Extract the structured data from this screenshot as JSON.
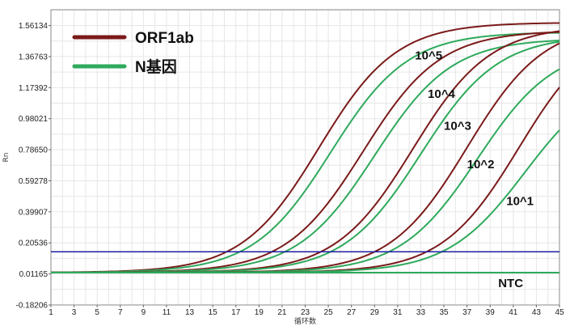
{
  "chart_data": {
    "type": "line",
    "title": "",
    "xlabel": "循环数",
    "ylabel": "Rn",
    "xlim": [
      1,
      45
    ],
    "ylim": [
      -0.18206,
      1.66
    ],
    "x_ticks": [
      1,
      3,
      5,
      7,
      9,
      11,
      13,
      15,
      17,
      19,
      21,
      23,
      25,
      27,
      29,
      31,
      33,
      35,
      37,
      39,
      41,
      43,
      45
    ],
    "y_ticks": [
      -0.18206,
      0.01165,
      0.20536,
      0.39907,
      0.59278,
      0.7865,
      0.98021,
      1.17392,
      1.36763,
      1.56134
    ],
    "y_tick_labels": [
      "-0.18206",
      "0.01165",
      "0.20536",
      "0.39907",
      "0.59278",
      "0.78650",
      "0.98021",
      "1.17392",
      "1.36763",
      "1.56134"
    ],
    "grid": true,
    "legend": {
      "position": "top-left",
      "entries": [
        {
          "name": "ORF1ab",
          "color": "#7b1a1a"
        },
        {
          "name": "N基因",
          "color": "#2eaa5c"
        }
      ]
    },
    "threshold": {
      "value": 0.15,
      "color": "#1f1fa0"
    },
    "series": [
      {
        "name": "ORF1ab",
        "label": "10^5",
        "color": "#7b1a1a",
        "baseline": 0.02,
        "plateau": 1.56,
        "midpoint": 24.2,
        "slope": 0.3
      },
      {
        "name": "N基因",
        "label": "10^5",
        "color": "#2eaa5c",
        "baseline": 0.02,
        "plateau": 1.5,
        "midpoint": 25.2,
        "slope": 0.3
      },
      {
        "name": "ORF1ab",
        "label": "10^4",
        "color": "#7b1a1a",
        "baseline": 0.02,
        "plateau": 1.51,
        "midpoint": 28.0,
        "slope": 0.3
      },
      {
        "name": "N基因",
        "label": "10^4",
        "color": "#2eaa5c",
        "baseline": 0.02,
        "plateau": 1.46,
        "midpoint": 29.0,
        "slope": 0.3
      },
      {
        "name": "ORF1ab",
        "label": "10^3",
        "color": "#7b1a1a",
        "baseline": 0.02,
        "plateau": 1.54,
        "midpoint": 32.3,
        "slope": 0.3
      },
      {
        "name": "N基因",
        "label": "10^3",
        "color": "#2eaa5c",
        "baseline": 0.02,
        "plateau": 1.48,
        "midpoint": 33.0,
        "slope": 0.3
      },
      {
        "name": "ORF1ab",
        "label": "10^2",
        "color": "#7b1a1a",
        "baseline": 0.02,
        "plateau": 1.56,
        "midpoint": 37.0,
        "slope": 0.3
      },
      {
        "name": "N基因",
        "label": "10^2",
        "color": "#2eaa5c",
        "baseline": 0.02,
        "plateau": 1.42,
        "midpoint": 37.9,
        "slope": 0.3
      },
      {
        "name": "ORF1ab",
        "label": "10^1",
        "color": "#7b1a1a",
        "baseline": 0.02,
        "plateau": 1.56,
        "midpoint": 41.5,
        "slope": 0.3
      },
      {
        "name": "N基因",
        "label": "10^1",
        "color": "#2eaa5c",
        "baseline": 0.02,
        "plateau": 1.25,
        "midpoint": 42.0,
        "slope": 0.3
      },
      {
        "name": "N基因",
        "label": "NTC",
        "color": "#2eaa5c",
        "baseline": 0.02,
        "plateau": 0.0,
        "midpoint": 60,
        "slope": 0.3
      }
    ],
    "annotations": [
      {
        "text": "10^5",
        "x": 32.5,
        "y": 1.35
      },
      {
        "text": "10^4",
        "x": 33.6,
        "y": 1.11
      },
      {
        "text": "10^3",
        "x": 35.0,
        "y": 0.91
      },
      {
        "text": "10^2",
        "x": 37.0,
        "y": 0.67
      },
      {
        "text": "10^1",
        "x": 40.4,
        "y": 0.44
      },
      {
        "text": "NTC",
        "x": 39.7,
        "y": -0.07
      }
    ]
  }
}
